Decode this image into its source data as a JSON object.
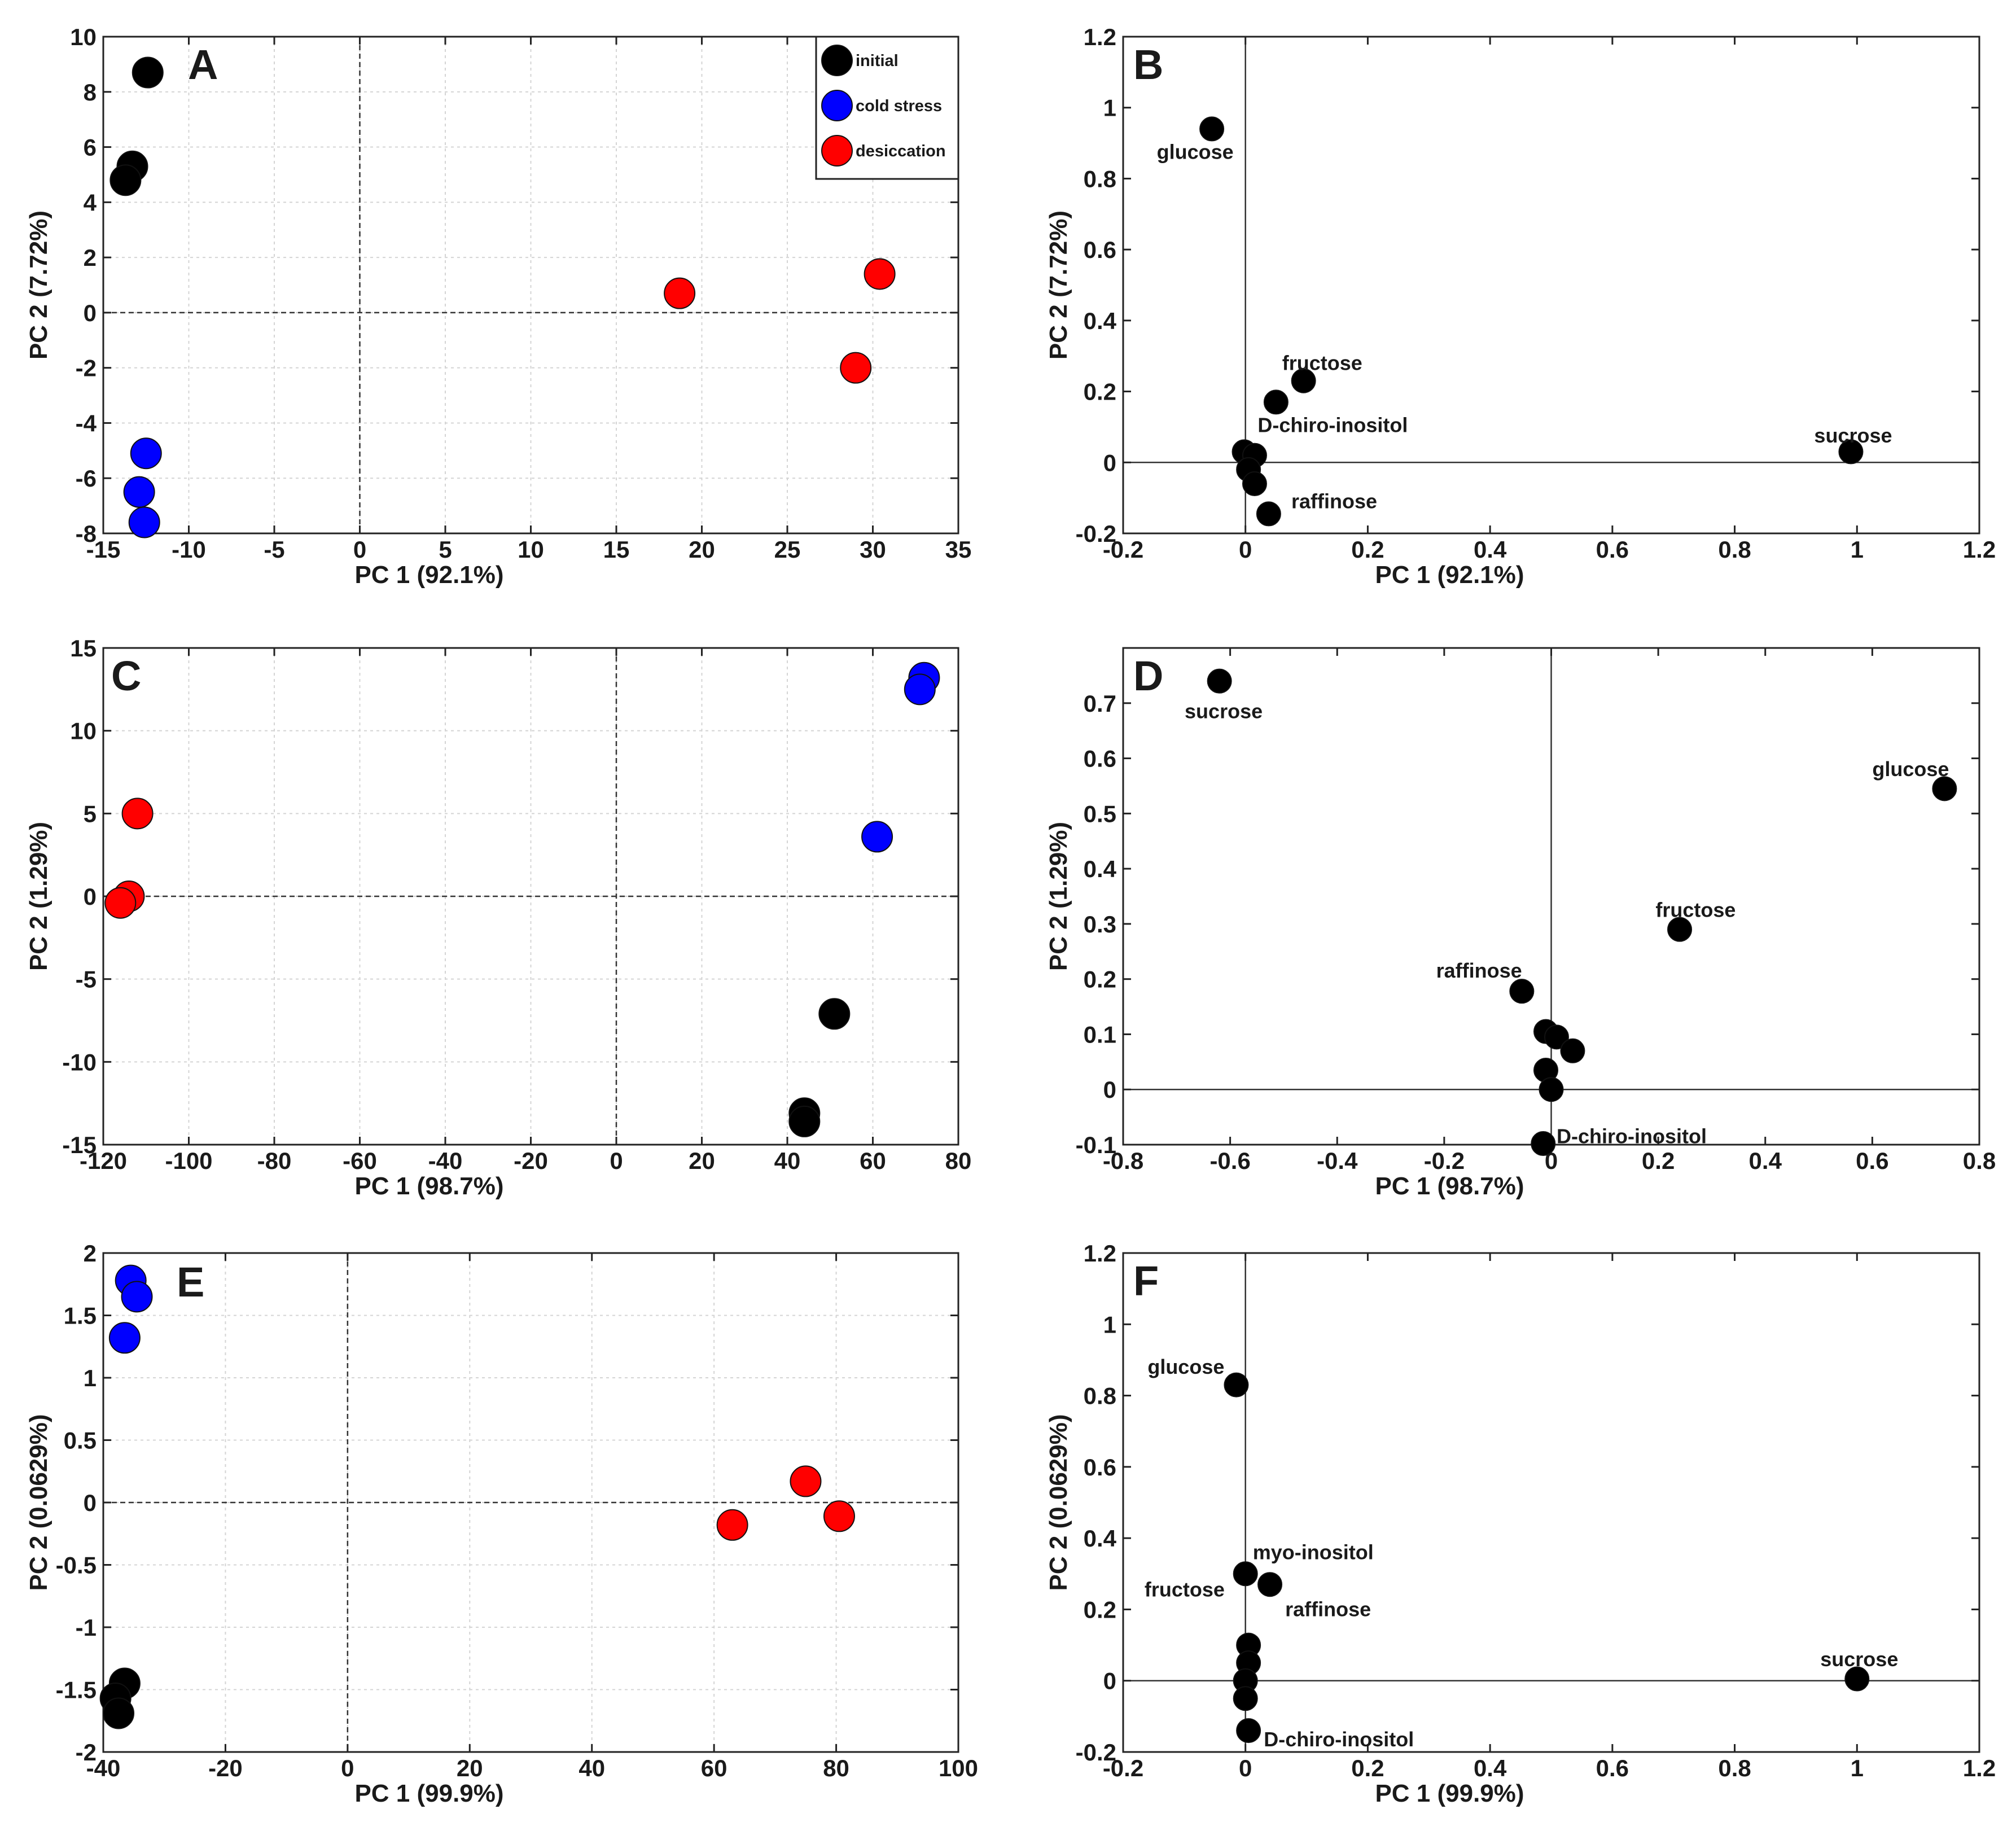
{
  "legend": {
    "entries": [
      {
        "label": "initial",
        "color": "#000000"
      },
      {
        "label": "cold stress",
        "color": "#0000ff"
      },
      {
        "label": "desiccation",
        "color": "#ff0000"
      }
    ]
  },
  "chart_data": [
    {
      "panel": "A",
      "type": "scatter",
      "xlabel": "PC 1 (92.1%)",
      "ylabel": "PC 2 (7.72%)",
      "xlim": [
        -15,
        35
      ],
      "ylim": [
        -8,
        10
      ],
      "xticks": [
        -15,
        -10,
        -5,
        0,
        5,
        10,
        15,
        20,
        25,
        30,
        35
      ],
      "yticks": [
        -8,
        -6,
        -4,
        -2,
        0,
        2,
        4,
        6,
        8,
        10
      ],
      "grid": true,
      "zero_lines": "dashed",
      "legend": "top-right",
      "series": [
        {
          "name": "initial",
          "color": "#000000",
          "points": [
            [
              -12.4,
              8.7
            ],
            [
              -13.3,
              5.3
            ],
            [
              -13.7,
              4.8
            ]
          ]
        },
        {
          "name": "cold stress",
          "color": "#0000ff",
          "points": [
            [
              -12.5,
              -5.1
            ],
            [
              -12.9,
              -6.5
            ],
            [
              -12.6,
              -7.6
            ]
          ]
        },
        {
          "name": "desiccation",
          "color": "#ff0000",
          "points": [
            [
              18.7,
              0.7
            ],
            [
              30.4,
              1.4
            ],
            [
              29.0,
              -2.0
            ]
          ]
        }
      ]
    },
    {
      "panel": "B",
      "type": "scatter",
      "xlabel": "PC 1 (92.1%)",
      "ylabel": "PC 2 (7.72%)",
      "xlim": [
        -0.2,
        1.2
      ],
      "ylim": [
        -0.2,
        1.2
      ],
      "xticks": [
        -0.2,
        0,
        0.2,
        0.4,
        0.6,
        0.8,
        1,
        1.2
      ],
      "yticks": [
        -0.2,
        0,
        0.2,
        0.4,
        0.6,
        0.8,
        1,
        1.2
      ],
      "grid": false,
      "zero_lines": "solid",
      "series": [
        {
          "name": "loadings",
          "color": "#000000",
          "points": [
            [
              -0.055,
              0.94
            ],
            [
              0.095,
              0.23
            ],
            [
              0.05,
              0.17
            ],
            [
              0.99,
              0.03
            ],
            [
              -0.002,
              0.03
            ],
            [
              0.015,
              0.02
            ],
            [
              0.005,
              -0.02
            ],
            [
              0.015,
              -0.06
            ],
            [
              0.038,
              -0.145
            ]
          ]
        }
      ],
      "annotations": [
        {
          "text": "glucose",
          "x": -0.145,
          "y": 0.875,
          "anchor": "start"
        },
        {
          "text": "fructose",
          "x": 0.06,
          "y": 0.28,
          "anchor": "start"
        },
        {
          "text": "D-chiro-inositol",
          "x": 0.02,
          "y": 0.105,
          "anchor": "start"
        },
        {
          "text": "sucrose",
          "x": 0.93,
          "y": 0.075,
          "anchor": "start"
        },
        {
          "text": "raffinose",
          "x": 0.075,
          "y": -0.11,
          "anchor": "start"
        }
      ]
    },
    {
      "panel": "C",
      "type": "scatter",
      "xlabel": "PC 1 (98.7%)",
      "ylabel": "PC 2 (1.29%)",
      "xlim": [
        -120,
        80
      ],
      "ylim": [
        -15,
        15
      ],
      "xticks": [
        -120,
        -100,
        -80,
        -60,
        -40,
        -20,
        0,
        20,
        40,
        60,
        80
      ],
      "yticks": [
        -15,
        -10,
        -5,
        0,
        5,
        10,
        15
      ],
      "grid": true,
      "zero_lines": "dashed",
      "series": [
        {
          "name": "initial",
          "color": "#000000",
          "points": [
            [
              51,
              -7.1
            ],
            [
              44,
              -13.1
            ],
            [
              44,
              -13.6
            ]
          ]
        },
        {
          "name": "cold stress",
          "color": "#0000ff",
          "points": [
            [
              72,
              13.2
            ],
            [
              71,
              12.5
            ],
            [
              61,
              3.6
            ]
          ]
        },
        {
          "name": "desiccation",
          "color": "#ff0000",
          "points": [
            [
              -112,
              5.0
            ],
            [
              -114,
              0.0
            ],
            [
              -116,
              -0.4
            ]
          ]
        }
      ]
    },
    {
      "panel": "D",
      "type": "scatter",
      "xlabel": "PC 1 (98.7%)",
      "ylabel": "PC 2 (1.29%)",
      "xlim": [
        -0.8,
        0.8
      ],
      "ylim": [
        -0.1,
        0.8
      ],
      "xticks": [
        -0.8,
        -0.6,
        -0.4,
        -0.2,
        0,
        0.2,
        0.4,
        0.6,
        0.8
      ],
      "yticks": [
        -0.1,
        0,
        0.1,
        0.2,
        0.3,
        0.4,
        0.5,
        0.6,
        0.7
      ],
      "grid": false,
      "zero_lines": "solid",
      "series": [
        {
          "name": "loadings",
          "color": "#000000",
          "points": [
            [
              -0.62,
              0.74
            ],
            [
              0.735,
              0.545
            ],
            [
              0.24,
              0.29
            ],
            [
              -0.055,
              0.178
            ],
            [
              -0.01,
              0.105
            ],
            [
              0.01,
              0.095
            ],
            [
              0.04,
              0.07
            ],
            [
              -0.01,
              0.035
            ],
            [
              0.0,
              0.0
            ],
            [
              -0.015,
              -0.098
            ]
          ]
        }
      ],
      "annotations": [
        {
          "text": "sucrose",
          "x": -0.685,
          "y": 0.685,
          "anchor": "start"
        },
        {
          "text": "glucose",
          "x": 0.6,
          "y": 0.58,
          "anchor": "start"
        },
        {
          "text": "fructose",
          "x": 0.195,
          "y": 0.325,
          "anchor": "start"
        },
        {
          "text": "raffinose",
          "x": -0.215,
          "y": 0.215,
          "anchor": "start"
        },
        {
          "text": "D-chiro-inositol",
          "x": 0.01,
          "y": -0.085,
          "anchor": "start"
        }
      ]
    },
    {
      "panel": "E",
      "type": "scatter",
      "xlabel": "PC 1 (99.9%)",
      "ylabel": "PC 2 (0.0629%)",
      "xlim": [
        -40,
        100
      ],
      "ylim": [
        -2,
        2
      ],
      "xticks": [
        -40,
        -20,
        0,
        20,
        40,
        60,
        80,
        100
      ],
      "yticks": [
        -2,
        -1.5,
        -1,
        -0.5,
        0,
        0.5,
        1,
        1.5,
        2
      ],
      "grid": true,
      "zero_lines": "dashed",
      "series": [
        {
          "name": "initial",
          "color": "#000000",
          "points": [
            [
              -36.5,
              -1.45
            ],
            [
              -38,
              -1.57
            ],
            [
              -37.5,
              -1.69
            ]
          ]
        },
        {
          "name": "cold stress",
          "color": "#0000ff",
          "points": [
            [
              -35.5,
              1.78
            ],
            [
              -34.5,
              1.65
            ],
            [
              -36.5,
              1.32
            ]
          ]
        },
        {
          "name": "desiccation",
          "color": "#ff0000",
          "points": [
            [
              75,
              0.17
            ],
            [
              80.5,
              -0.11
            ],
            [
              63,
              -0.18
            ]
          ]
        }
      ]
    },
    {
      "panel": "F",
      "type": "scatter",
      "xlabel": "PC 1 (99.9%)",
      "ylabel": "PC 2 (0.0629%)",
      "xlim": [
        -0.2,
        1.2
      ],
      "ylim": [
        -0.2,
        1.2
      ],
      "xticks": [
        -0.2,
        0,
        0.2,
        0.4,
        0.6,
        0.8,
        1,
        1.2
      ],
      "yticks": [
        -0.2,
        0,
        0.2,
        0.4,
        0.6,
        0.8,
        1,
        1.2
      ],
      "grid": false,
      "zero_lines": "solid",
      "series": [
        {
          "name": "loadings",
          "color": "#000000",
          "points": [
            [
              -0.015,
              0.83
            ],
            [
              0.0,
              0.3
            ],
            [
              0.04,
              0.27
            ],
            [
              1.0,
              0.005
            ],
            [
              0.005,
              0.1
            ],
            [
              0.005,
              0.05
            ],
            [
              0.0,
              0.0
            ],
            [
              0.0,
              -0.05
            ],
            [
              0.005,
              -0.14
            ]
          ]
        }
      ],
      "annotations": [
        {
          "text": "glucose",
          "x": -0.16,
          "y": 0.88,
          "anchor": "start"
        },
        {
          "text": "myo-inositol",
          "x": 0.012,
          "y": 0.36,
          "anchor": "start"
        },
        {
          "text": "fructose",
          "x": -0.165,
          "y": 0.255,
          "anchor": "start"
        },
        {
          "text": "raffinose",
          "x": 0.065,
          "y": 0.2,
          "anchor": "start"
        },
        {
          "text": "sucrose",
          "x": 0.94,
          "y": 0.06,
          "anchor": "start"
        },
        {
          "text": "D-chiro-inositol",
          "x": 0.03,
          "y": -0.165,
          "anchor": "start"
        }
      ]
    }
  ]
}
